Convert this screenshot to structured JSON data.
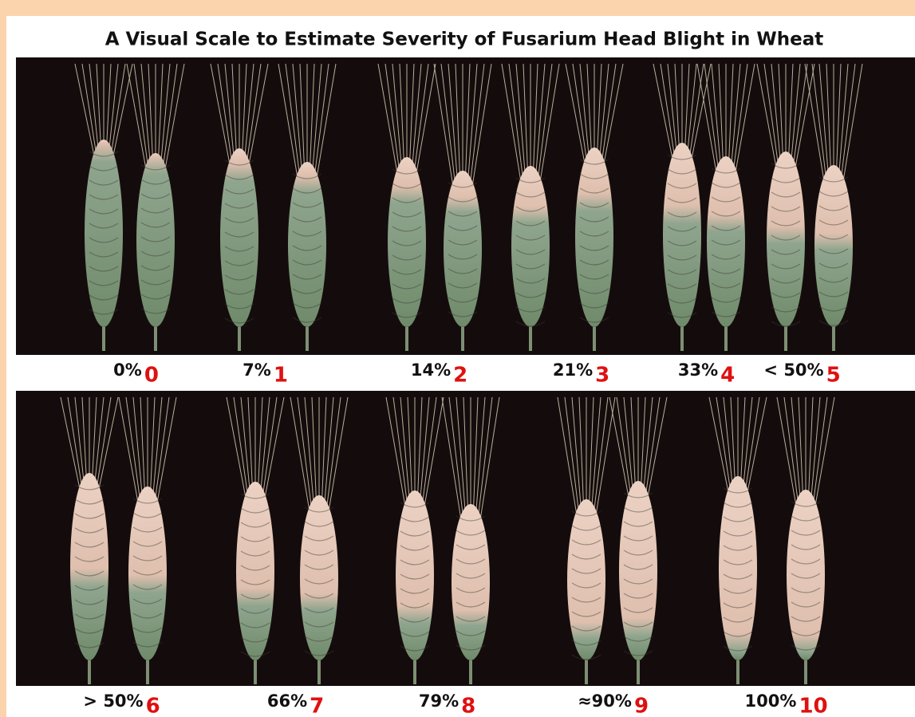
{
  "title": "A Visual Scale to Estimate Severity of Fusarium Head Blight in Wheat",
  "rows": [
    {
      "items": [
        {
          "percent": "0%",
          "score": "0"
        },
        {
          "percent": "7%",
          "score": "1"
        },
        {
          "percent": "14%",
          "score": "2"
        },
        {
          "percent": "21%",
          "score": "3"
        },
        {
          "percent": "33%",
          "score": "4"
        },
        {
          "percent": "< 50%",
          "score": "5"
        }
      ]
    },
    {
      "items": [
        {
          "percent": "> 50%",
          "score": "6"
        },
        {
          "percent": "66%",
          "score": "7"
        },
        {
          "percent": "79%",
          "score": "8"
        },
        {
          "percent": "≈90%",
          "score": "9"
        },
        {
          "percent": "100%",
          "score": "10"
        }
      ]
    }
  ]
}
